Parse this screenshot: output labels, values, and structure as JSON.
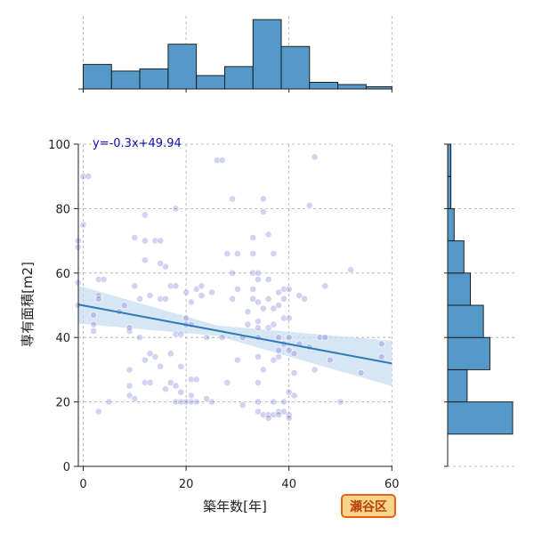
{
  "chart_data": {
    "type": "scatter",
    "title": "",
    "xlabel": "築年数[年]",
    "ylabel": "専有面積[m2]",
    "xlim": [
      0,
      60
    ],
    "ylim": [
      0,
      100
    ],
    "x_ticks": [
      "0",
      "20",
      "40",
      "60"
    ],
    "y_ticks": [
      "0",
      "20",
      "40",
      "60",
      "80",
      "100"
    ],
    "grid": true,
    "regression": {
      "equation": "y=-0.3x+49.94",
      "slope": -0.3,
      "intercept": 49.94
    },
    "badge": "瀬谷区",
    "colors": {
      "points": "#6a6ad0",
      "regression": "#2c7bb6",
      "band": "#c6dbef",
      "hist": "#5499c7",
      "badge_fill": "#fbd58a",
      "badge_border": "#e8611a"
    },
    "x_hist": {
      "bin_edges": [
        0,
        5.5,
        11,
        16.5,
        22,
        27.5,
        33,
        38.5,
        44,
        49.5,
        55,
        60
      ],
      "counts": [
        11,
        8,
        9,
        20,
        6,
        10,
        31,
        19,
        3,
        2,
        1
      ]
    },
    "y_hist": {
      "bin_edges": [
        10,
        20,
        30,
        40,
        50,
        60,
        70,
        80,
        90,
        100
      ],
      "counts": [
        20,
        6,
        13,
        11,
        7,
        5,
        2,
        1,
        1
      ]
    },
    "points": [
      [
        -1,
        50
      ],
      [
        -1,
        57
      ],
      [
        -1,
        70
      ],
      [
        -1,
        68
      ],
      [
        0,
        75
      ],
      [
        0,
        90
      ],
      [
        1,
        90
      ],
      [
        2,
        47
      ],
      [
        2,
        44
      ],
      [
        2,
        42
      ],
      [
        3,
        53
      ],
      [
        3,
        52
      ],
      [
        3,
        58
      ],
      [
        4,
        58
      ],
      [
        3,
        17
      ],
      [
        5,
        20
      ],
      [
        7,
        48
      ],
      [
        8,
        50
      ],
      [
        9,
        42
      ],
      [
        9,
        43
      ],
      [
        9,
        30
      ],
      [
        9,
        25
      ],
      [
        9,
        22
      ],
      [
        10,
        21
      ],
      [
        10,
        56
      ],
      [
        10,
        71
      ],
      [
        11,
        52
      ],
      [
        11,
        40
      ],
      [
        12,
        78
      ],
      [
        12,
        70
      ],
      [
        12,
        64
      ],
      [
        12,
        33
      ],
      [
        12,
        26
      ],
      [
        13,
        35
      ],
      [
        13,
        53
      ],
      [
        13,
        26
      ],
      [
        14,
        70
      ],
      [
        14,
        34
      ],
      [
        15,
        70
      ],
      [
        15,
        63
      ],
      [
        15,
        52
      ],
      [
        15,
        31
      ],
      [
        16,
        62
      ],
      [
        16,
        52
      ],
      [
        16,
        24
      ],
      [
        17,
        35
      ],
      [
        17,
        56
      ],
      [
        17,
        26
      ],
      [
        18,
        56
      ],
      [
        18,
        80
      ],
      [
        18,
        41
      ],
      [
        18,
        25
      ],
      [
        18,
        20
      ],
      [
        19,
        31
      ],
      [
        19,
        20
      ],
      [
        19,
        41
      ],
      [
        19,
        23
      ],
      [
        20,
        54
      ],
      [
        20,
        46
      ],
      [
        20,
        44
      ],
      [
        20,
        20
      ],
      [
        21,
        51
      ],
      [
        21,
        44
      ],
      [
        21,
        22
      ],
      [
        21,
        20
      ],
      [
        21,
        27
      ],
      [
        22,
        55
      ],
      [
        22,
        27
      ],
      [
        22,
        20
      ],
      [
        23,
        53
      ],
      [
        23,
        56
      ],
      [
        24,
        40
      ],
      [
        24,
        21
      ],
      [
        25,
        54
      ],
      [
        25,
        20
      ],
      [
        26,
        95
      ],
      [
        27,
        95
      ],
      [
        27,
        40
      ],
      [
        28,
        26
      ],
      [
        28,
        66
      ],
      [
        29,
        60
      ],
      [
        29,
        83
      ],
      [
        29,
        52
      ],
      [
        30,
        66
      ],
      [
        30,
        55
      ],
      [
        30,
        33
      ],
      [
        31,
        40
      ],
      [
        31,
        19
      ],
      [
        32,
        44
      ],
      [
        32,
        48
      ],
      [
        33,
        60
      ],
      [
        33,
        52
      ],
      [
        33,
        71
      ],
      [
        33,
        66
      ],
      [
        33,
        55
      ],
      [
        34,
        60
      ],
      [
        34,
        58
      ],
      [
        34,
        51
      ],
      [
        34,
        45
      ],
      [
        34,
        43
      ],
      [
        34,
        40
      ],
      [
        34,
        34
      ],
      [
        34,
        26
      ],
      [
        34,
        20
      ],
      [
        34,
        17
      ],
      [
        35,
        83
      ],
      [
        35,
        79
      ],
      [
        35,
        30
      ],
      [
        35,
        49
      ],
      [
        35,
        16
      ],
      [
        36,
        72
      ],
      [
        36,
        58
      ],
      [
        36,
        52
      ],
      [
        36,
        43
      ],
      [
        36,
        16
      ],
      [
        36,
        15
      ],
      [
        37,
        66
      ],
      [
        37,
        49
      ],
      [
        37,
        44
      ],
      [
        37,
        33
      ],
      [
        37,
        20
      ],
      [
        37,
        16
      ],
      [
        38,
        54
      ],
      [
        38,
        50
      ],
      [
        38,
        40
      ],
      [
        38,
        36
      ],
      [
        38,
        34
      ],
      [
        38,
        17
      ],
      [
        38,
        16
      ],
      [
        39,
        55
      ],
      [
        39,
        52
      ],
      [
        39,
        46
      ],
      [
        39,
        38
      ],
      [
        39,
        20
      ],
      [
        39,
        17
      ],
      [
        40,
        55
      ],
      [
        40,
        46
      ],
      [
        40,
        40
      ],
      [
        40,
        36
      ],
      [
        40,
        23
      ],
      [
        40,
        16
      ],
      [
        40,
        15
      ],
      [
        41,
        29
      ],
      [
        41,
        22
      ],
      [
        41,
        35
      ],
      [
        42,
        53
      ],
      [
        42,
        38
      ],
      [
        43,
        52
      ],
      [
        44,
        81
      ],
      [
        44,
        37
      ],
      [
        45,
        96
      ],
      [
        45,
        30
      ],
      [
        46,
        40
      ],
      [
        47,
        56
      ],
      [
        47,
        40
      ],
      [
        48,
        33
      ],
      [
        50,
        20
      ],
      [
        52,
        61
      ],
      [
        54,
        29
      ],
      [
        58,
        38
      ],
      [
        58,
        34
      ]
    ]
  }
}
